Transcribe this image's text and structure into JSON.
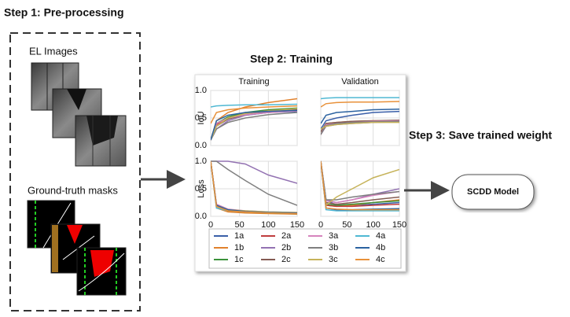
{
  "step1": {
    "title": "Step 1: Pre-processing",
    "el_label": "EL Images",
    "mask_label": "Ground-truth masks"
  },
  "step2": {
    "title": "Step 2: Training",
    "col_titles": [
      "Training",
      "Validation"
    ],
    "row_labels": [
      "IoU",
      "Loss"
    ],
    "x": [
      0,
      10,
      30,
      60,
      100,
      150
    ],
    "xlim": [
      0,
      150
    ],
    "xticks": [
      0,
      50,
      100,
      150
    ],
    "ylim": [
      0,
      1
    ],
    "yticks": [
      {
        "value": 0,
        "label": "0.0"
      },
      {
        "value": 0.5,
        "label": "0.5"
      },
      {
        "value": 1,
        "label": "1.0"
      }
    ],
    "grid": true,
    "series": [
      {
        "name": "1a",
        "color": "#3a5fa8",
        "values": [
          [
            [
              0.1,
              0.4,
              0.5,
              0.55,
              0.6,
              0.62
            ],
            [
              0.3,
              0.45,
              0.5,
              0.55,
              0.6,
              0.62
            ]
          ],
          [
            [
              1,
              0.2,
              0.1,
              0.08,
              0.06,
              0.05
            ],
            [
              1,
              0.3,
              0.2,
              0.2,
              0.22,
              0.25
            ]
          ]
        ]
      },
      {
        "name": "1b",
        "color": "#e1812c",
        "values": [
          [
            [
              0.1,
              0.45,
              0.6,
              0.7,
              0.78,
              0.85
            ],
            [
              0.2,
              0.4,
              0.42,
              0.44,
              0.45,
              0.45
            ]
          ],
          [
            [
              1,
              0.15,
              0.08,
              0.06,
              0.05,
              0.04
            ],
            [
              1,
              0.2,
              0.18,
              0.2,
              0.25,
              0.3
            ]
          ]
        ]
      },
      {
        "name": "1c",
        "color": "#3a923a",
        "values": [
          [
            [
              0.1,
              0.4,
              0.52,
              0.6,
              0.65,
              0.68
            ],
            [
              0.2,
              0.38,
              0.4,
              0.42,
              0.43,
              0.44
            ]
          ],
          [
            [
              1,
              0.18,
              0.1,
              0.08,
              0.06,
              0.05
            ],
            [
              1,
              0.22,
              0.2,
              0.22,
              0.25,
              0.28
            ]
          ]
        ]
      },
      {
        "name": "2a",
        "color": "#c03d3e",
        "values": [
          [
            [
              0.1,
              0.38,
              0.5,
              0.58,
              0.63,
              0.66
            ],
            [
              0.2,
              0.36,
              0.4,
              0.42,
              0.44,
              0.45
            ]
          ],
          [
            [
              1,
              0.2,
              0.12,
              0.09,
              0.07,
              0.06
            ],
            [
              1,
              0.2,
              0.18,
              0.18,
              0.2,
              0.22
            ]
          ]
        ]
      },
      {
        "name": "2b",
        "color": "#9372b2",
        "values": [
          [
            [
              0.1,
              0.3,
              0.45,
              0.55,
              0.6,
              0.63
            ],
            [
              0.2,
              0.35,
              0.38,
              0.4,
              0.42,
              0.43
            ]
          ],
          [
            [
              1,
              1,
              1,
              0.95,
              0.75,
              0.6
            ],
            [
              1,
              0.3,
              0.25,
              0.3,
              0.4,
              0.5
            ]
          ]
        ]
      },
      {
        "name": "2c",
        "color": "#845b53",
        "values": [
          [
            [
              0.1,
              0.35,
              0.48,
              0.56,
              0.62,
              0.65
            ],
            [
              0.25,
              0.4,
              0.42,
              0.44,
              0.45,
              0.46
            ]
          ],
          [
            [
              1,
              0.2,
              0.12,
              0.09,
              0.07,
              0.06
            ],
            [
              1,
              0.25,
              0.22,
              0.25,
              0.3,
              0.35
            ]
          ]
        ]
      },
      {
        "name": "3a",
        "color": "#d684bd",
        "values": [
          [
            [
              0.1,
              0.4,
              0.5,
              0.56,
              0.6,
              0.63
            ],
            [
              0.2,
              0.38,
              0.4,
              0.42,
              0.44,
              0.45
            ]
          ],
          [
            [
              1,
              0.22,
              0.13,
              0.1,
              0.08,
              0.07
            ],
            [
              1,
              0.28,
              0.25,
              0.3,
              0.38,
              0.45
            ]
          ]
        ]
      },
      {
        "name": "3b",
        "color": "#7f7f7f",
        "values": [
          [
            [
              0.1,
              0.3,
              0.42,
              0.5,
              0.56,
              0.6
            ],
            [
              0.2,
              0.36,
              0.4,
              0.42,
              0.43,
              0.44
            ]
          ],
          [
            [
              1,
              1,
              0.85,
              0.65,
              0.4,
              0.2
            ],
            [
              1,
              0.3,
              0.3,
              0.35,
              0.4,
              0.45
            ]
          ]
        ]
      },
      {
        "name": "3c",
        "color": "#c6b35a",
        "values": [
          [
            [
              0.1,
              0.35,
              0.5,
              0.58,
              0.63,
              0.67
            ],
            [
              0.3,
              0.35,
              0.38,
              0.4,
              0.42,
              0.42
            ]
          ],
          [
            [
              1,
              0.2,
              0.12,
              0.1,
              0.08,
              0.07
            ],
            [
              1,
              0.2,
              0.35,
              0.5,
              0.7,
              0.85
            ]
          ]
        ]
      },
      {
        "name": "4a",
        "color": "#4fb8d3",
        "values": [
          [
            [
              0.7,
              0.72,
              0.73,
              0.74,
              0.74,
              0.75
            ],
            [
              0.85,
              0.86,
              0.87,
              0.87,
              0.87,
              0.87
            ]
          ],
          [
            [
              1,
              0.15,
              0.1,
              0.08,
              0.07,
              0.06
            ],
            [
              1,
              0.12,
              0.1,
              0.1,
              0.1,
              0.1
            ]
          ]
        ]
      },
      {
        "name": "4b",
        "color": "#2b62a0",
        "values": [
          [
            [
              0.1,
              0.45,
              0.55,
              0.6,
              0.62,
              0.64
            ],
            [
              0.4,
              0.55,
              0.6,
              0.62,
              0.65,
              0.66
            ]
          ],
          [
            [
              1,
              0.2,
              0.12,
              0.09,
              0.07,
              0.06
            ],
            [
              1,
              0.15,
              0.12,
              0.12,
              0.13,
              0.14
            ]
          ]
        ]
      },
      {
        "name": "4c",
        "color": "#e8913a",
        "values": [
          [
            [
              0.4,
              0.6,
              0.65,
              0.68,
              0.7,
              0.72
            ],
            [
              0.7,
              0.76,
              0.78,
              0.79,
              0.79,
              0.8
            ]
          ],
          [
            [
              1,
              0.18,
              0.1,
              0.08,
              0.06,
              0.05
            ],
            [
              1,
              0.15,
              0.13,
              0.12,
              0.12,
              0.12
            ]
          ]
        ]
      }
    ]
  },
  "step3": {
    "title": "Step 3: Save trained weight",
    "model": "SCDD Model"
  }
}
